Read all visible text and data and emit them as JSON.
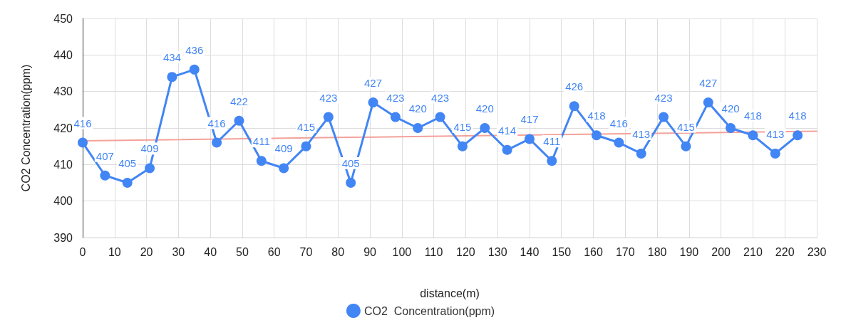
{
  "chart_data": {
    "type": "line",
    "xlabel": "distance(m)",
    "ylabel": "CO2 Concentration(ppm)",
    "xlim": [
      0,
      230
    ],
    "xticks": [
      0,
      10,
      20,
      30,
      40,
      50,
      60,
      70,
      80,
      90,
      100,
      110,
      120,
      130,
      140,
      150,
      160,
      170,
      180,
      190,
      200,
      210,
      220,
      230
    ],
    "ylim": [
      390,
      450
    ],
    "yticks": [
      390,
      400,
      410,
      420,
      430,
      440,
      450
    ],
    "grid": true,
    "legend": "bottom",
    "marker": "circle",
    "line_style": "solid",
    "series": [
      {
        "name": "CO2  Concentration(ppm)",
        "color": "#4285f4",
        "x": [
          0,
          7,
          14,
          21,
          28,
          35,
          42,
          49,
          56,
          63,
          70,
          77,
          84,
          91,
          98,
          105,
          112,
          119,
          126,
          133,
          140,
          147,
          154,
          161,
          168,
          175,
          182,
          189,
          196,
          203,
          210,
          217,
          224
        ],
        "values": [
          416,
          407,
          405,
          409,
          434,
          436,
          416,
          422,
          411,
          409,
          415,
          423,
          405,
          427,
          423,
          420,
          423,
          415,
          420,
          414,
          417,
          411,
          426,
          418,
          416,
          413,
          423,
          415,
          427,
          420,
          418,
          413,
          418
        ],
        "value_labels": [
          "416",
          "407",
          "405",
          "409",
          "434",
          "436",
          "416",
          "422",
          "411",
          "409",
          "415",
          "423",
          "405",
          "427",
          "423",
          "420",
          "423",
          "415",
          "420",
          "414",
          "417",
          "411",
          "426",
          "418",
          "416",
          "413",
          "423",
          "415",
          "427",
          "420",
          "418",
          "413",
          "418"
        ]
      },
      {
        "color": "#f4a19a",
        "marker": "none",
        "x": [
          0,
          230
        ],
        "values": [
          416.5,
          419.1
        ]
      }
    ]
  }
}
